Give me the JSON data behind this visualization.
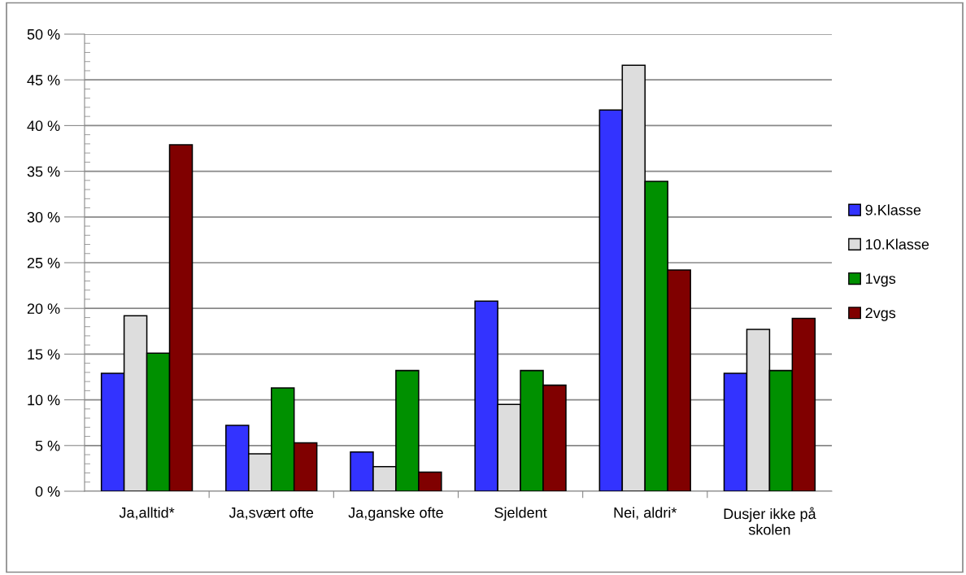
{
  "chart_data": {
    "type": "bar",
    "categories": [
      "Ja,alltid*",
      "Ja,svært ofte",
      "Ja,ganske ofte",
      "Sjeldent",
      "Nei, aldri*",
      "Dusjer ikke på\nskolen"
    ],
    "series": [
      {
        "name": "9.Klasse",
        "color": "#3333ff",
        "values": [
          12.9,
          7.2,
          4.3,
          20.8,
          41.7,
          12.9
        ]
      },
      {
        "name": "10.Klasse",
        "color": "#dddddd",
        "values": [
          19.2,
          4.1,
          2.7,
          9.5,
          46.6,
          17.7
        ]
      },
      {
        "name": "1vgs",
        "color": "#009000",
        "values": [
          15.1,
          11.3,
          13.2,
          13.2,
          33.9,
          13.2
        ]
      },
      {
        "name": "2vgs",
        "color": "#800000",
        "values": [
          37.9,
          5.3,
          2.1,
          11.6,
          24.2,
          18.9
        ]
      }
    ],
    "ylim": [
      0,
      50
    ],
    "yticks": [
      {
        "value": 0,
        "label": "0 %"
      },
      {
        "value": 5,
        "label": "5 %"
      },
      {
        "value": 10,
        "label": "10 %"
      },
      {
        "value": 15,
        "label": "15 %"
      },
      {
        "value": 20,
        "label": "20 %"
      },
      {
        "value": 25,
        "label": "25 %"
      },
      {
        "value": 30,
        "label": "30 %"
      },
      {
        "value": 35,
        "label": "35 %"
      },
      {
        "value": 40,
        "label": "40 %"
      },
      {
        "value": 45,
        "label": "45 %"
      },
      {
        "value": 50,
        "label": "50 %"
      }
    ],
    "grid": "y",
    "legend": "right"
  }
}
